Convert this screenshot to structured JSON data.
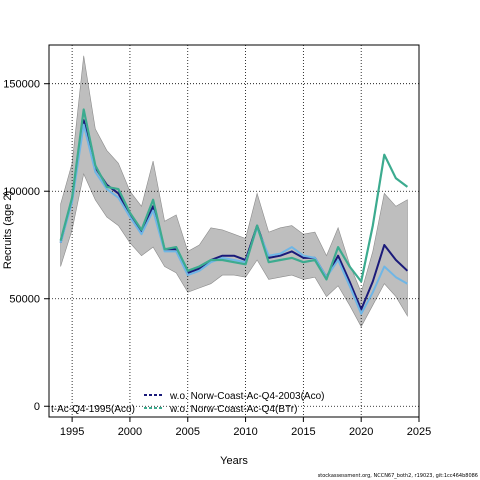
{
  "chart_data": {
    "type": "line",
    "xlabel": "Years",
    "ylabel": "Recruits (age 2)",
    "xlim": [
      1993,
      2025
    ],
    "ylim": [
      -5000,
      168000
    ],
    "xticks": [
      1995,
      2000,
      2005,
      2010,
      2015,
      2020,
      2025
    ],
    "yticks": [
      0,
      50000,
      100000,
      150000
    ],
    "xtick_labels": [
      "1995",
      "2000",
      "2005",
      "2010",
      "2015",
      "2020",
      "2025"
    ],
    "ytick_labels": [
      "0",
      "50000",
      "100000",
      "150000"
    ],
    "grid": true,
    "legend_position": "bottom",
    "x": [
      1994,
      1995,
      1996,
      1997,
      1998,
      1999,
      2000,
      2001,
      2002,
      2003,
      2004,
      2005,
      2006,
      2007,
      2008,
      2009,
      2010,
      2011,
      2012,
      2013,
      2014,
      2015,
      2016,
      2017,
      2018,
      2019,
      2020,
      2021,
      2022,
      2023,
      2024
    ],
    "band": {
      "lower": [
        65000,
        82000,
        108000,
        96000,
        88000,
        84000,
        76000,
        70000,
        74000,
        65000,
        62000,
        53000,
        55000,
        57000,
        61000,
        61000,
        60000,
        68000,
        59000,
        60000,
        61000,
        59000,
        60000,
        51000,
        56000,
        47000,
        37000,
        47000,
        57000,
        51000,
        42000
      ],
      "upper": [
        94000,
        113000,
        163000,
        129000,
        119000,
        113000,
        100000,
        93000,
        114000,
        86000,
        89000,
        72000,
        75000,
        83000,
        82000,
        80000,
        78000,
        99000,
        81000,
        83000,
        84000,
        80000,
        81000,
        70000,
        83000,
        66000,
        53000,
        72000,
        99000,
        93000,
        96000
      ]
    },
    "series": [
      {
        "name": "",
        "color": "#1a1a7a",
        "values": [
          76000,
          96000,
          133000,
          111000,
          103000,
          99000,
          89000,
          81000,
          93000,
          73000,
          73000,
          62000,
          64000,
          68000,
          70000,
          70000,
          68000,
          84000,
          69000,
          70000,
          72000,
          69000,
          69000,
          60000,
          70000,
          58000,
          45000,
          58000,
          75000,
          68000,
          63000
        ]
      },
      {
        "name": "",
        "color": "#6fb6e6",
        "values": [
          76000,
          95000,
          131000,
          109000,
          101000,
          97000,
          88000,
          80000,
          91000,
          72000,
          72000,
          61000,
          63000,
          67000,
          69000,
          68000,
          67000,
          83000,
          70000,
          71000,
          74000,
          70000,
          69000,
          60000,
          68000,
          56000,
          43000,
          53000,
          65000,
          60000,
          57000
        ]
      },
      {
        "name": "",
        "color": "#3cab8f",
        "values": [
          77000,
          97000,
          138000,
          112000,
          102000,
          101000,
          90000,
          82000,
          96000,
          73000,
          74000,
          63000,
          65000,
          68000,
          68000,
          67000,
          66000,
          84000,
          67000,
          68000,
          69000,
          67000,
          68000,
          59000,
          74000,
          65000,
          58000,
          84000,
          117000,
          106000,
          102000
        ]
      }
    ],
    "legend": [
      {
        "label": "t-Ac-Q4-1995(Aco)",
        "color": "#1a1a7a",
        "style": "dashed"
      },
      {
        "label": "w.o. Norw-Coast-Ac-Q4-2003(Aco)",
        "color": "#1a1a7a",
        "style": "dashed"
      },
      {
        "label": "w.o. Norw-Coast-Ac-Q4(BTr)",
        "color": "#3cab8f",
        "style": "dashed"
      }
    ]
  },
  "footer": "stockassessment.org, NCCN67_both2, r19023, git:1cc464b8086"
}
